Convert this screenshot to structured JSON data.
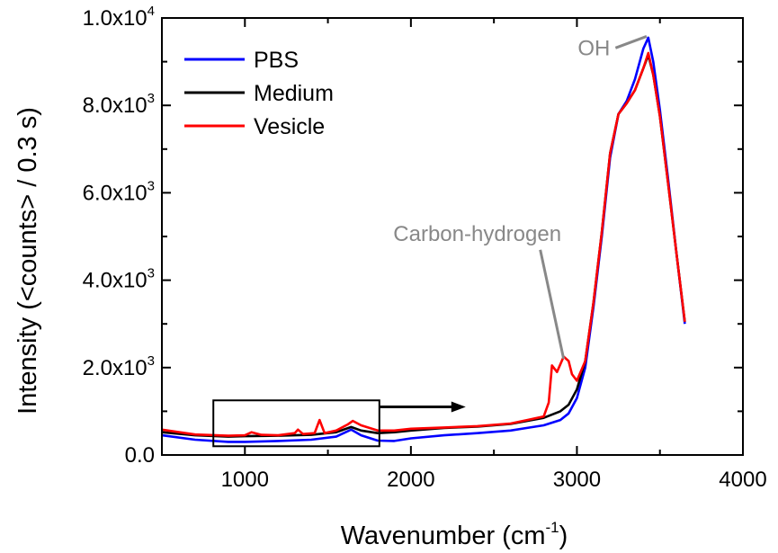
{
  "chart_data": {
    "type": "line",
    "xlabel": "Wavenumber (cm",
    "xlabel_sup": "-1",
    "xlabel_end": ")",
    "ylabel": "Intensity (<counts> / 0.3 s)",
    "xlim": [
      500,
      4000
    ],
    "ylim": [
      0,
      10000
    ],
    "x_ticks": [
      1000,
      2000,
      3000,
      4000
    ],
    "x_tick_labels": [
      "1000",
      "2000",
      "3000",
      "4000"
    ],
    "y_ticks": [
      {
        "value": 0,
        "mantissa": "0.0",
        "exp": ""
      },
      {
        "value": 2000,
        "mantissa": "2.0x10",
        "exp": "3"
      },
      {
        "value": 4000,
        "mantissa": "4.0x10",
        "exp": "3"
      },
      {
        "value": 6000,
        "mantissa": "6.0x10",
        "exp": "3"
      },
      {
        "value": 8000,
        "mantissa": "8.0x10",
        "exp": "3"
      },
      {
        "value": 10000,
        "mantissa": "1.0x10",
        "exp": "4"
      }
    ],
    "legend_position": "top-left",
    "series": [
      {
        "name": "PBS",
        "color": "#0000ff",
        "points": [
          [
            500,
            450
          ],
          [
            700,
            350
          ],
          [
            900,
            300
          ],
          [
            1000,
            300
          ],
          [
            1200,
            320
          ],
          [
            1400,
            350
          ],
          [
            1550,
            420
          ],
          [
            1640,
            580
          ],
          [
            1700,
            450
          ],
          [
            1800,
            330
          ],
          [
            1900,
            320
          ],
          [
            2000,
            380
          ],
          [
            2200,
            450
          ],
          [
            2400,
            500
          ],
          [
            2600,
            560
          ],
          [
            2700,
            620
          ],
          [
            2800,
            680
          ],
          [
            2900,
            800
          ],
          [
            2950,
            950
          ],
          [
            3000,
            1300
          ],
          [
            3050,
            2000
          ],
          [
            3100,
            3400
          ],
          [
            3150,
            5000
          ],
          [
            3200,
            6800
          ],
          [
            3250,
            7800
          ],
          [
            3300,
            8100
          ],
          [
            3350,
            8600
          ],
          [
            3400,
            9300
          ],
          [
            3430,
            9550
          ],
          [
            3460,
            9000
          ],
          [
            3500,
            7900
          ],
          [
            3550,
            6300
          ],
          [
            3600,
            4600
          ],
          [
            3650,
            3000
          ]
        ]
      },
      {
        "name": "Medium",
        "color": "#000000",
        "points": [
          [
            500,
            520
          ],
          [
            700,
            450
          ],
          [
            900,
            420
          ],
          [
            1000,
            430
          ],
          [
            1200,
            440
          ],
          [
            1400,
            460
          ],
          [
            1550,
            520
          ],
          [
            1640,
            640
          ],
          [
            1700,
            560
          ],
          [
            1800,
            500
          ],
          [
            1900,
            520
          ],
          [
            2000,
            560
          ],
          [
            2200,
            620
          ],
          [
            2400,
            650
          ],
          [
            2600,
            710
          ],
          [
            2700,
            780
          ],
          [
            2800,
            850
          ],
          [
            2900,
            1000
          ],
          [
            2950,
            1150
          ],
          [
            3000,
            1500
          ],
          [
            3050,
            2150
          ],
          [
            3100,
            3500
          ],
          [
            3150,
            5100
          ],
          [
            3200,
            6900
          ],
          [
            3250,
            7800
          ],
          [
            3300,
            8050
          ],
          [
            3350,
            8350
          ],
          [
            3400,
            8850
          ],
          [
            3430,
            9150
          ],
          [
            3460,
            8700
          ],
          [
            3500,
            7750
          ],
          [
            3550,
            6200
          ],
          [
            3600,
            4600
          ],
          [
            3650,
            3050
          ]
        ]
      },
      {
        "name": "Vesicle",
        "color": "#ff0000",
        "points": [
          [
            500,
            580
          ],
          [
            700,
            470
          ],
          [
            900,
            440
          ],
          [
            1000,
            450
          ],
          [
            1040,
            520
          ],
          [
            1100,
            460
          ],
          [
            1200,
            450
          ],
          [
            1300,
            500
          ],
          [
            1320,
            580
          ],
          [
            1350,
            480
          ],
          [
            1420,
            500
          ],
          [
            1450,
            800
          ],
          [
            1480,
            500
          ],
          [
            1550,
            560
          ],
          [
            1620,
            700
          ],
          [
            1650,
            780
          ],
          [
            1700,
            680
          ],
          [
            1800,
            560
          ],
          [
            1900,
            560
          ],
          [
            2000,
            600
          ],
          [
            2200,
            630
          ],
          [
            2400,
            660
          ],
          [
            2600,
            720
          ],
          [
            2700,
            800
          ],
          [
            2800,
            880
          ],
          [
            2830,
            1200
          ],
          [
            2850,
            2050
          ],
          [
            2880,
            1900
          ],
          [
            2920,
            2250
          ],
          [
            2950,
            2150
          ],
          [
            2970,
            1850
          ],
          [
            3000,
            1700
          ],
          [
            3050,
            2150
          ],
          [
            3100,
            3500
          ],
          [
            3150,
            5100
          ],
          [
            3200,
            6900
          ],
          [
            3250,
            7800
          ],
          [
            3300,
            8050
          ],
          [
            3350,
            8350
          ],
          [
            3400,
            8850
          ],
          [
            3430,
            9200
          ],
          [
            3460,
            8700
          ],
          [
            3500,
            7750
          ],
          [
            3550,
            6200
          ],
          [
            3600,
            4600
          ],
          [
            3650,
            3050
          ]
        ]
      }
    ],
    "annotations": [
      {
        "text": "OH",
        "x": 3200,
        "y": 9150,
        "arrow_to": [
          3420,
          9580
        ]
      },
      {
        "text": "Carbon-hydrogen",
        "x": 2400,
        "y": 4900,
        "arrow_to": [
          2920,
          2200
        ]
      }
    ],
    "inset_box": {
      "x0": 810,
      "x1": 1810,
      "y0": 200,
      "y1": 1250
    },
    "inset_arrow": {
      "from": [
        1810,
        1100
      ],
      "to": [
        2330,
        1100
      ]
    }
  }
}
